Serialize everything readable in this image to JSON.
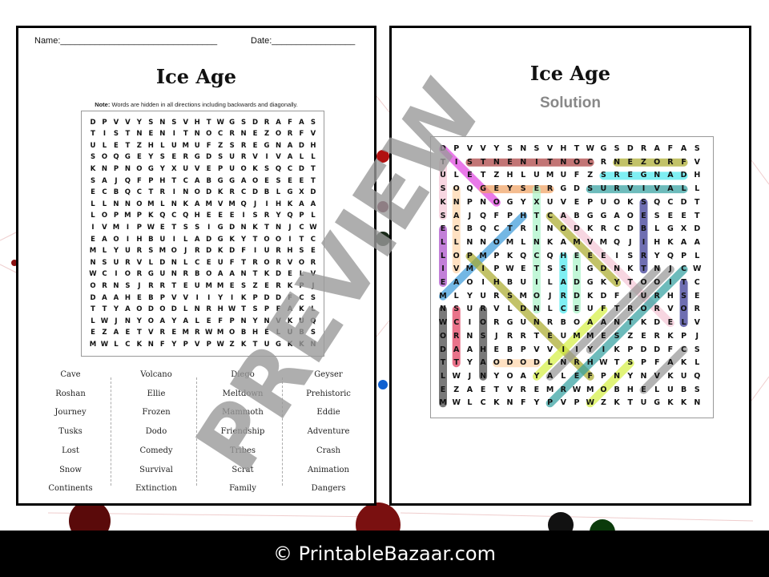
{
  "worksheet": {
    "name_label": "Name:________________________________",
    "date_label": "Date:_________________",
    "title": "Ice Age",
    "note_bold": "Note:",
    "note_text": " Words are hidden in all directions including backwards and diagonally.",
    "word_list": [
      [
        "Cave",
        "Roshan",
        "Journey",
        "Tusks",
        "Lost",
        "Snow",
        "Continents"
      ],
      [
        "Volcano",
        "Ellie",
        "Frozen",
        "Dodo",
        "Comedy",
        "Survival",
        "Extinction"
      ],
      [
        "Diego",
        "Meltdown",
        "Mammoth",
        "Friendship",
        "Tribes",
        "Scrat",
        "Family"
      ],
      [
        "Geyser",
        "Prehistoric",
        "Eddie",
        "Adventure",
        "Crash",
        "Animation",
        "Dangers"
      ]
    ]
  },
  "solution": {
    "title": "Ice Age",
    "subtitle": "Solution",
    "highlights": [
      {
        "word": "DIEGO",
        "from": [
          0,
          0
        ],
        "to": [
          4,
          4
        ],
        "color": "#e040e0"
      },
      {
        "word": "CONTINENTS",
        "from": [
          1,
          2
        ],
        "to": [
          1,
          11
        ],
        "color": "#a83a3a"
      },
      {
        "word": "FROZEN",
        "from": [
          1,
          13
        ],
        "to": [
          1,
          18
        ],
        "color": "#a8a828"
      },
      {
        "word": "DANGERS",
        "from": [
          2,
          12
        ],
        "to": [
          2,
          18
        ],
        "color": "#48e8ee"
      },
      {
        "word": "GEYSER",
        "from": [
          3,
          3
        ],
        "to": [
          3,
          8
        ],
        "color": "#f0a060"
      },
      {
        "word": "SURVIVAL",
        "from": [
          3,
          11
        ],
        "to": [
          3,
          18
        ],
        "color": "#2f9e9e"
      },
      {
        "word": "TUSKS",
        "from": [
          1,
          0
        ],
        "to": [
          5,
          0
        ],
        "color": "#f4c4d4"
      },
      {
        "word": "ELLIE",
        "from": [
          6,
          0
        ],
        "to": [
          10,
          0
        ],
        "color": "#a848c8"
      },
      {
        "word": "VOLCANO",
        "from": [
          3,
          1
        ],
        "to": [
          9,
          1
        ],
        "color": "#ffd4a8"
      },
      {
        "word": "EXTINCTION",
        "from": [
          3,
          7
        ],
        "to": [
          12,
          7
        ],
        "color": "#a8f4c8"
      },
      {
        "word": "TRIBES",
        "from": [
          4,
          15
        ],
        "to": [
          9,
          15
        ],
        "color": "#303090"
      },
      {
        "word": "LOST",
        "from": [
          10,
          18
        ],
        "to": [
          13,
          18
        ],
        "color": "#303090"
      },
      {
        "word": "CRASH",
        "from": [
          8,
          9
        ],
        "to": [
          12,
          9
        ],
        "color": "#48e8ee"
      },
      {
        "word": "EDDIE",
        "from": [
          8,
          10
        ],
        "to": [
          12,
          10
        ],
        "color": "#a8f4c8"
      },
      {
        "word": "COMEDY",
        "from": [
          5,
          8
        ],
        "to": [
          10,
          13
        ],
        "color": "#a8a828"
      },
      {
        "word": "ADVENTURE",
        "from": [
          5,
          9
        ],
        "to": [
          13,
          17
        ],
        "color": "#f4c4d4"
      },
      {
        "word": "MAMMOTH",
        "from": [
          11,
          0
        ],
        "to": [
          5,
          6
        ],
        "color": "#3898d8"
      },
      {
        "word": "FRIENDSHIP",
        "from": [
          8,
          2
        ],
        "to": [
          17,
          11
        ],
        "color": "#a8a828"
      },
      {
        "word": "MELTDOWN",
        "from": [
          12,
          0
        ],
        "to": [
          19,
          0
        ],
        "color": "#404040"
      },
      {
        "word": "SCRAT",
        "from": [
          12,
          1
        ],
        "to": [
          16,
          1
        ],
        "color": "#e03858"
      },
      {
        "word": "ROSHAN",
        "from": [
          12,
          3
        ],
        "to": [
          17,
          3
        ],
        "color": "#404040"
      },
      {
        "word": "DODO",
        "from": [
          16,
          4
        ],
        "to": [
          16,
          7
        ],
        "color": "#ffd4a8"
      },
      {
        "word": "FAMILY",
        "from": [
          12,
          12
        ],
        "to": [
          17,
          7
        ],
        "color": "#d4f040"
      },
      {
        "word": "ANIMATION",
        "from": [
          17,
          8
        ],
        "to": [
          9,
          16
        ],
        "color": "#949494"
      },
      {
        "word": "JOURNEY",
        "from": [
          9,
          17
        ],
        "to": [
          15,
          11
        ],
        "color": "#949494"
      },
      {
        "word": "CAVE",
        "from": [
          15,
          18
        ],
        "to": [
          18,
          15
        ],
        "color": "#949494"
      },
      {
        "word": "PREHISTORIC",
        "from": [
          19,
          8
        ],
        "to": [
          9,
          18
        ],
        "color": "#2f9e9e"
      },
      {
        "word": "SNOW",
        "from": [
          19,
          11
        ],
        "to": [
          16,
          14
        ],
        "color": "#d4f040"
      }
    ]
  },
  "grid": [
    "DPVVYSNSVHTWGSDRAFAS",
    "TISTNENITNOCRNEZORFV",
    "ULETZHLUMUFZSREGNADH",
    "SOQGEYSERGDSURVIVALL",
    "KNPNOGYXUVEPUOKSQCDT",
    "SAJQFPHTCABGGAOESEET",
    "ECBQCTRINODKRCDBLGXD",
    "LLNNOMLNKAMVMQJIHKAA",
    "LOPMPKQCQHEEEISRYQPL",
    "IVMIPWETSSIGDNKTNJCW",
    "EAOIHBUILADGKYTOOITC",
    "MLYURSMOJRDKDFIURHSE",
    "NSURVLDNLCEUFTRORVOR",
    "WCIORGUNRBOAANTKDELV",
    "ORNSJRRTEUMMESZERKPJ",
    "DAAHEBPVVIIYIKPDDFCS",
    "TTYAODODLNRHWTSPFAKL",
    "LWJNYOAYALEFPNYNVKUQ",
    "EZAETVREMRWMOBHELUBS",
    "MWLCKNFYPVPWZKTUGKKN"
  ],
  "watermark": "PREVIEW",
  "footer": {
    "text": "© PrintableBazaar.com"
  }
}
